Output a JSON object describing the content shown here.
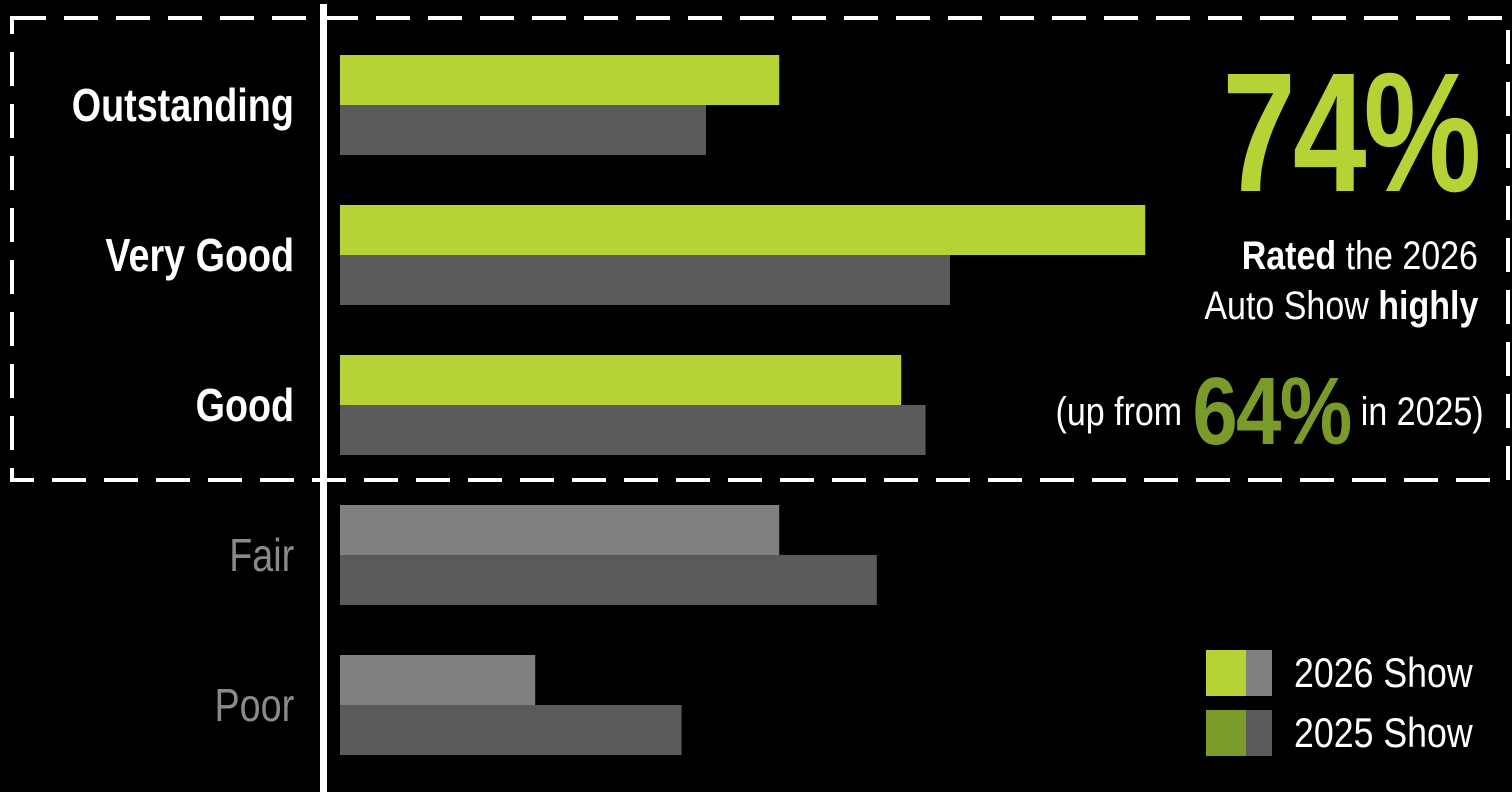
{
  "chart_data": {
    "type": "bar",
    "orientation": "horizontal",
    "categories": [
      "Outstanding",
      "Very Good",
      "Good",
      "Fair",
      "Poor"
    ],
    "highlighted_categories": [
      "Outstanding",
      "Very Good",
      "Good"
    ],
    "series": [
      {
        "name": "2026 Show",
        "values": [
          18,
          33,
          23,
          18,
          8
        ]
      },
      {
        "name": "2025 Show",
        "values": [
          15,
          25,
          24,
          22,
          14
        ]
      }
    ],
    "xlim": [
      0,
      50
    ],
    "grid": false,
    "legend_position": "bottom-right",
    "colors": {
      "series_2026_highlight": "#b5d334",
      "series_2026_dim": "#808080",
      "series_2025": "#5a5a5a",
      "legend_2025_accent": "#7a9a2a",
      "axis": "#ffffff",
      "background": "#000000"
    }
  },
  "callout": {
    "big_value": "74%",
    "line1_bold": "Rated",
    "line1_rest": " the 2026",
    "line2_rest": "Auto Show ",
    "line2_bold": "highly",
    "up_prefix": "(up from",
    "prev_value": "64%",
    "up_suffix": "in 2025)"
  },
  "legend": {
    "item1": "2026 Show",
    "item2": "2025 Show"
  }
}
